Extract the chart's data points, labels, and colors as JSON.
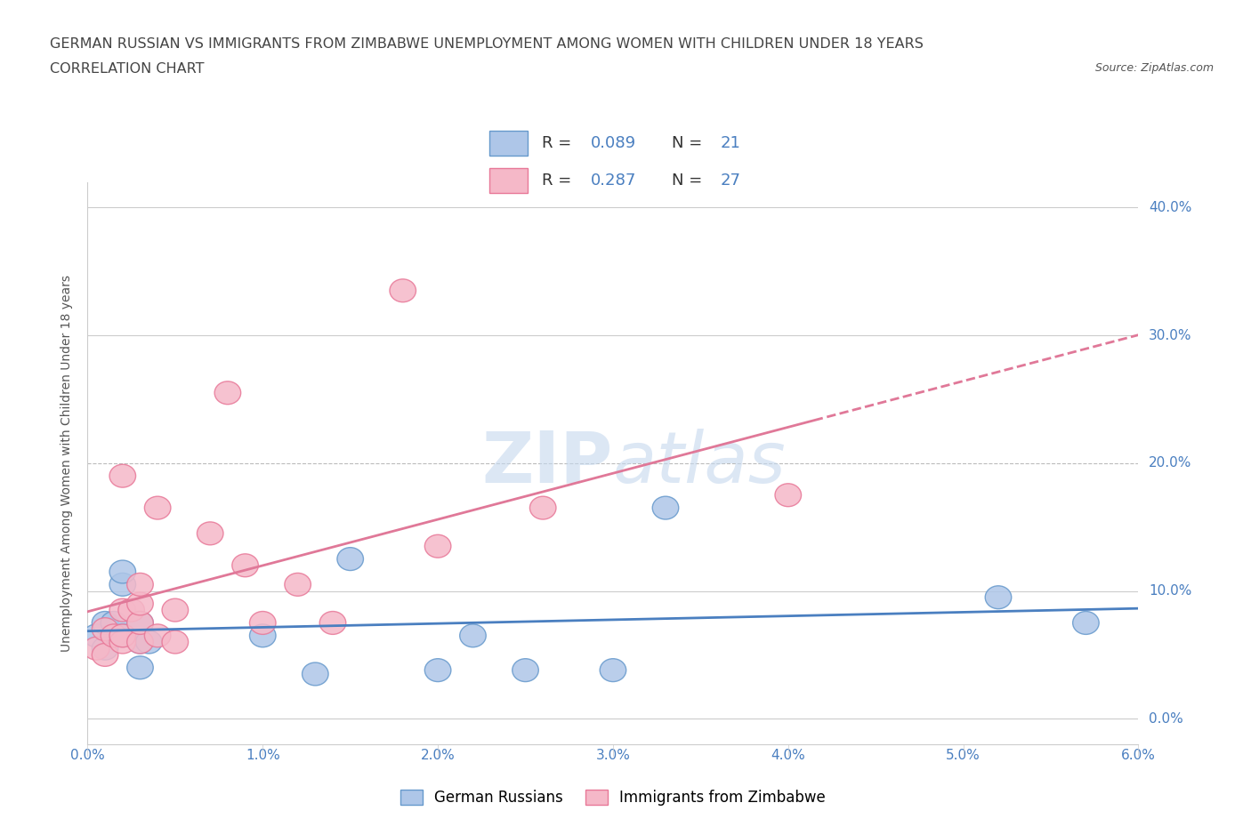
{
  "title_line1": "GERMAN RUSSIAN VS IMMIGRANTS FROM ZIMBABWE UNEMPLOYMENT AMONG WOMEN WITH CHILDREN UNDER 18 YEARS",
  "title_line2": "CORRELATION CHART",
  "source": "Source: ZipAtlas.com",
  "ylabel": "Unemployment Among Women with Children Under 18 years",
  "xlim": [
    0.0,
    0.06
  ],
  "ylim": [
    -0.02,
    0.42
  ],
  "xticks": [
    0.0,
    0.01,
    0.02,
    0.03,
    0.04,
    0.05,
    0.06
  ],
  "xticklabels": [
    "0.0%",
    "1.0%",
    "2.0%",
    "3.0%",
    "4.0%",
    "5.0%",
    "6.0%"
  ],
  "yticks": [
    0.0,
    0.1,
    0.2,
    0.3,
    0.4
  ],
  "yticklabels": [
    "0.0%",
    "10.0%",
    "20.0%",
    "30.0%",
    "40.0%"
  ],
  "blue_color": "#aec6e8",
  "blue_edge": "#6699cc",
  "pink_color": "#f5b8c8",
  "pink_edge": "#e87898",
  "line_blue": "#4a7fc0",
  "line_pink": "#e07898",
  "R_blue": 0.089,
  "N_blue": 21,
  "R_pink": 0.287,
  "N_pink": 27,
  "blue_x": [
    0.0005,
    0.001,
    0.001,
    0.0015,
    0.002,
    0.002,
    0.002,
    0.003,
    0.003,
    0.003,
    0.0035,
    0.01,
    0.013,
    0.015,
    0.02,
    0.022,
    0.025,
    0.03,
    0.033,
    0.052,
    0.057
  ],
  "blue_y": [
    0.065,
    0.075,
    0.055,
    0.075,
    0.065,
    0.105,
    0.115,
    0.04,
    0.06,
    0.075,
    0.06,
    0.065,
    0.035,
    0.125,
    0.038,
    0.065,
    0.038,
    0.038,
    0.165,
    0.095,
    0.075
  ],
  "pink_x": [
    0.0005,
    0.001,
    0.001,
    0.0015,
    0.002,
    0.002,
    0.002,
    0.002,
    0.0025,
    0.003,
    0.003,
    0.003,
    0.003,
    0.004,
    0.004,
    0.005,
    0.005,
    0.007,
    0.008,
    0.009,
    0.01,
    0.012,
    0.014,
    0.018,
    0.02,
    0.026,
    0.04
  ],
  "pink_y": [
    0.055,
    0.05,
    0.07,
    0.065,
    0.06,
    0.065,
    0.085,
    0.19,
    0.085,
    0.06,
    0.075,
    0.09,
    0.105,
    0.065,
    0.165,
    0.06,
    0.085,
    0.145,
    0.255,
    0.12,
    0.075,
    0.105,
    0.075,
    0.335,
    0.135,
    0.165,
    0.175
  ],
  "watermark_zip": "ZIP",
  "watermark_atlas": "atlas",
  "background_color": "#ffffff",
  "grid_color": "#cccccc",
  "grid_color_dashed": "#bbbbbb"
}
